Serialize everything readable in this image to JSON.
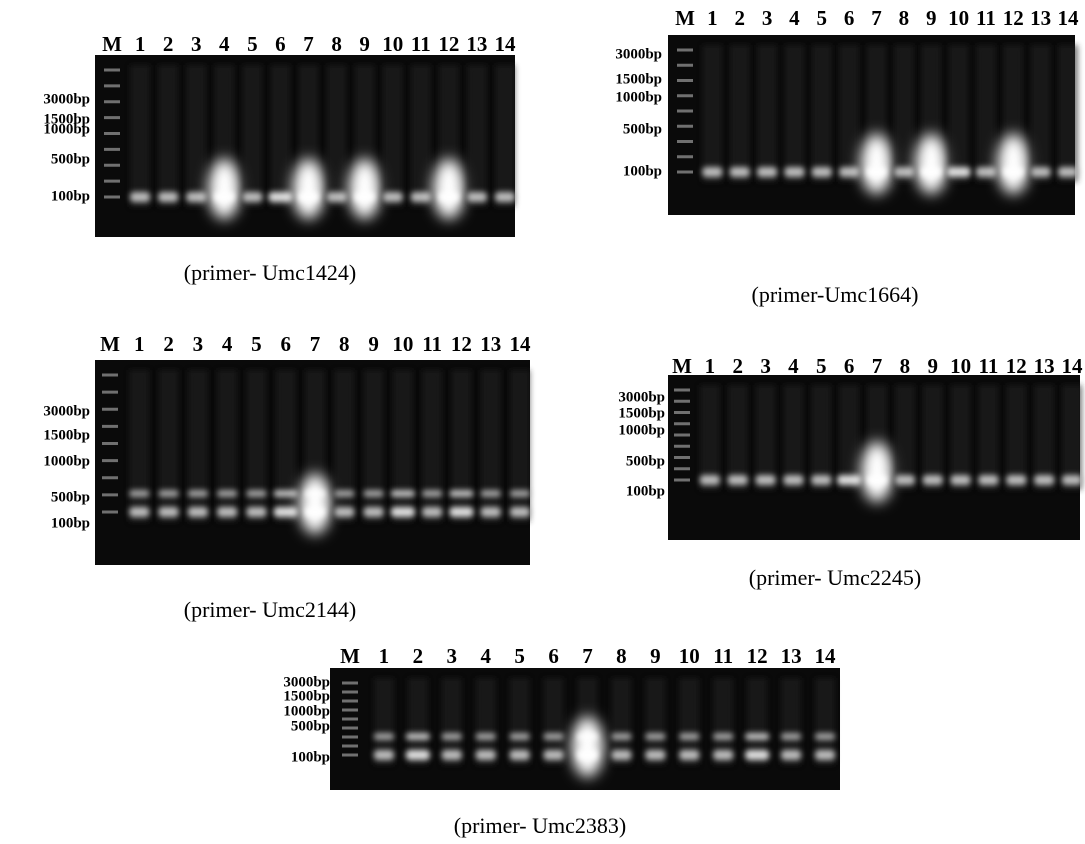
{
  "panels": [
    {
      "caption": "(primer- Umc1424)",
      "lanes": [
        "M",
        "1",
        "2",
        "3",
        "4",
        "5",
        "6",
        "7",
        "8",
        "9",
        "10",
        "11",
        "12",
        "13",
        "14"
      ],
      "sizes": [
        "3000bp",
        "1500bp",
        "1000bp",
        "500bp",
        "100bp"
      ]
    },
    {
      "caption": "(primer-Umc1664)",
      "lanes": [
        "M",
        "1",
        "2",
        "3",
        "4",
        "5",
        "6",
        "7",
        "8",
        "9",
        "10",
        "11",
        "12",
        "13",
        "14"
      ],
      "sizes": [
        "3000bp",
        "1500bp",
        "1000bp",
        "500bp",
        "100bp"
      ]
    },
    {
      "caption": "(primer- Umc2144)",
      "lanes": [
        "M",
        "1",
        "2",
        "3",
        "4",
        "5",
        "6",
        "7",
        "8",
        "9",
        "10",
        "11",
        "12",
        "13",
        "14"
      ],
      "sizes": [
        "3000bp",
        "1500bp",
        "1000bp",
        "500bp",
        "100bp"
      ]
    },
    {
      "caption": "(primer- Umc2245)",
      "lanes": [
        "M",
        "1",
        "2",
        "3",
        "4",
        "5",
        "6",
        "7",
        "8",
        "9",
        "10",
        "11",
        "12",
        "13",
        "14"
      ],
      "sizes": [
        "3000bp",
        "1500bp",
        "1000bp",
        "500bp",
        "100bp"
      ]
    },
    {
      "caption": "(primer- Umc2383)",
      "lanes": [
        "M",
        "1",
        "2",
        "3",
        "4",
        "5",
        "6",
        "7",
        "8",
        "9",
        "10",
        "11",
        "12",
        "13",
        "14"
      ],
      "sizes": [
        "3000bp",
        "1500bp",
        "1000bp",
        "500bp",
        "100bp"
      ]
    }
  ]
}
